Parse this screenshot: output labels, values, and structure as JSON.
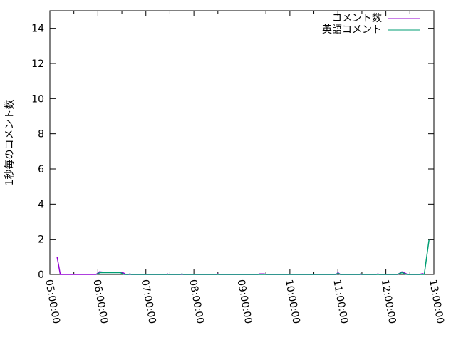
{
  "chart_data": {
    "type": "line",
    "title": "",
    "xlabel": "",
    "ylabel": "1秒毎のコメント数",
    "xlim": [
      "05:00:00",
      "13:00:00"
    ],
    "ylim": [
      0,
      15
    ],
    "xticks": [
      "05:00:00",
      "06:00:00",
      "07:00:00",
      "08:00:00",
      "09:00:00",
      "10:00:00",
      "11:00:00",
      "12:00:00",
      "13:00:00"
    ],
    "yticks": [
      0,
      2,
      4,
      6,
      8,
      10,
      12,
      14
    ],
    "grid": false,
    "legend_position": "top-right",
    "series": [
      {
        "name": "コメント数",
        "color": "#9400d3",
        "points": [
          [
            "05:09:00",
            1
          ],
          [
            "05:13:00",
            0
          ],
          [
            "05:58:00",
            0
          ],
          [
            "06:02:00",
            0.15
          ],
          [
            "06:08:00",
            0.12
          ],
          [
            "06:28:00",
            0.12
          ],
          [
            "06:32:00",
            0.08
          ],
          [
            "06:35:00",
            0
          ],
          [
            "07:26:00",
            0
          ],
          [
            "07:27:00",
            0.03
          ],
          [
            "07:28:00",
            0
          ],
          [
            "08:29:00",
            0
          ],
          [
            "08:30:00",
            0.03
          ],
          [
            "08:31:00",
            0
          ],
          [
            "09:20:00",
            0
          ],
          [
            "09:22:00",
            0.03
          ],
          [
            "09:28:00",
            0.03
          ],
          [
            "09:30:00",
            0
          ],
          [
            "10:58:00",
            0
          ],
          [
            "11:00:00",
            0.1
          ],
          [
            "11:03:00",
            0
          ],
          [
            "11:48:00",
            0
          ],
          [
            "11:50:00",
            0.03
          ],
          [
            "11:52:00",
            0
          ],
          [
            "12:15:00",
            0
          ],
          [
            "12:20:00",
            0.15
          ],
          [
            "12:25:00",
            0.05
          ],
          [
            "12:27:00",
            0
          ],
          [
            "12:42:00",
            0
          ],
          [
            "12:46:00",
            0.05
          ],
          [
            "12:48:00",
            0
          ]
        ]
      },
      {
        "name": "英語コメント",
        "color": "#009e73",
        "points": [
          [
            "05:58:00",
            0
          ],
          [
            "06:03:00",
            0.1
          ],
          [
            "06:28:00",
            0.1
          ],
          [
            "06:33:00",
            0
          ],
          [
            "06:38:00",
            0
          ],
          [
            "06:40:00",
            0.03
          ],
          [
            "06:42:00",
            0
          ],
          [
            "07:43:00",
            0
          ],
          [
            "07:45:00",
            0.03
          ],
          [
            "07:47:00",
            0
          ],
          [
            "10:58:00",
            0
          ],
          [
            "11:00:00",
            0.07
          ],
          [
            "11:03:00",
            0
          ],
          [
            "11:27:00",
            0
          ],
          [
            "11:28:00",
            0.03
          ],
          [
            "11:30:00",
            0
          ],
          [
            "12:14:00",
            0
          ],
          [
            "12:20:00",
            0.1
          ],
          [
            "12:26:00",
            0
          ],
          [
            "12:48:00",
            0
          ],
          [
            "12:54:00",
            2
          ]
        ]
      }
    ]
  }
}
